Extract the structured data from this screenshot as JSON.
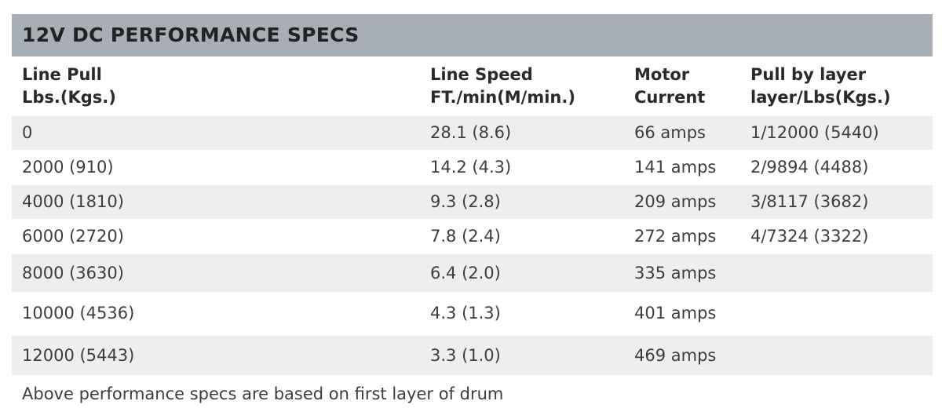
{
  "header": {
    "title": "12V DC PERFORMANCE SPECS"
  },
  "table": {
    "columns": [
      [
        "Line Pull",
        "Lbs.(Kgs.)"
      ],
      [
        "Line Speed",
        "FT./min(M/min.)"
      ],
      [
        "Motor",
        "Current"
      ],
      [
        "Pull by layer",
        "layer/Lbs(Kgs.)"
      ]
    ],
    "rows": [
      [
        "0",
        "28.1 (8.6)",
        "66 amps",
        "1/12000 (5440)"
      ],
      [
        "2000 (910)",
        "14.2 (4.3)",
        "141 amps",
        "2/9894 (4488)"
      ],
      [
        "4000 (1810)",
        "9.3 (2.8)",
        "209 amps",
        "3/8117 (3682)"
      ],
      [
        "6000 (2720)",
        "7.8 (2.4)",
        "272 amps",
        "4/7324 (3322)"
      ],
      [
        "8000 (3630)",
        "6.4 (2.0)",
        "335 amps"
      ],
      [
        "10000 (4536)",
        "4.3 (1.3)",
        "401 amps"
      ],
      [
        "12000 (5443)",
        "3.3 (1.0)",
        "469 amps"
      ]
    ]
  },
  "footnote": "Above performance specs are based on first layer of drum"
}
